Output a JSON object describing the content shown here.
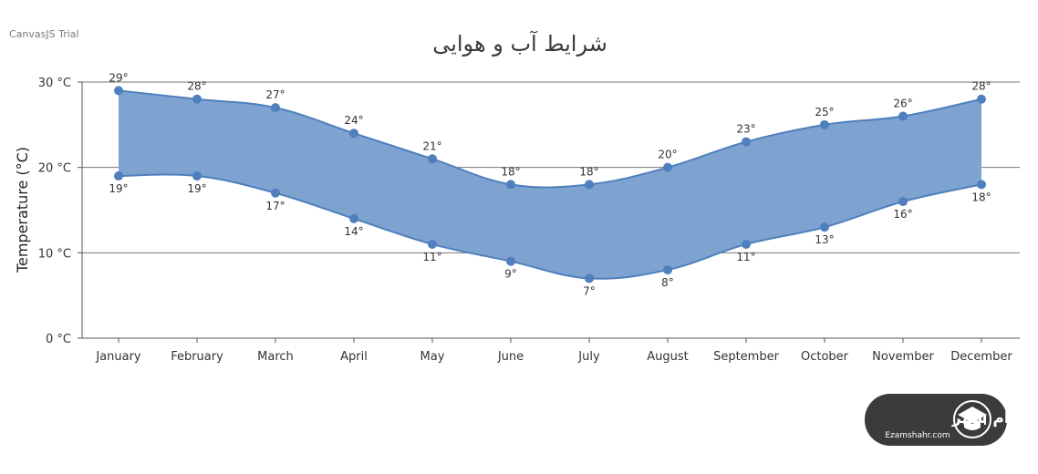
{
  "trial_text": "CanvasJS Trial",
  "badge": {
    "text": "اعزام شهر",
    "subtext": "Ezamshahr.com",
    "bg_color": "#3b3b3b"
  },
  "colors": {
    "area_fill": "#7ea3d0",
    "line": "#4f7fbd",
    "marker": "#4f7fbd",
    "grid": "#777777"
  },
  "chart_data": {
    "type": "area",
    "subtype": "rangeSplineArea",
    "title": "شرایط آب و هوایی",
    "ylabel": "Temperature (°C)",
    "ylim": [
      0,
      30
    ],
    "yticks": [
      0,
      10,
      20,
      30
    ],
    "ytick_labels": [
      "0 °C",
      "10 °C",
      "20 °C",
      "30 °C"
    ],
    "grid": true,
    "categories": [
      "January",
      "February",
      "March",
      "April",
      "May",
      "June",
      "July",
      "August",
      "September",
      "October",
      "November",
      "December"
    ],
    "series": [
      {
        "high": [
          29,
          28,
          27,
          24,
          21,
          18,
          18,
          20,
          23,
          25,
          26,
          28
        ],
        "low": [
          19,
          19,
          17,
          14,
          11,
          9,
          7,
          8,
          11,
          13,
          16,
          18
        ],
        "high_labels": [
          "29°",
          "28°",
          "27°",
          "24°",
          "21°",
          "18°",
          "18°",
          "20°",
          "23°",
          "25°",
          "26°",
          "28°"
        ],
        "low_labels": [
          "19°",
          "19°",
          "17°",
          "14°",
          "11°",
          "9°",
          "7°",
          "8°",
          "11°",
          "13°",
          "16°",
          "18°"
        ]
      }
    ]
  }
}
